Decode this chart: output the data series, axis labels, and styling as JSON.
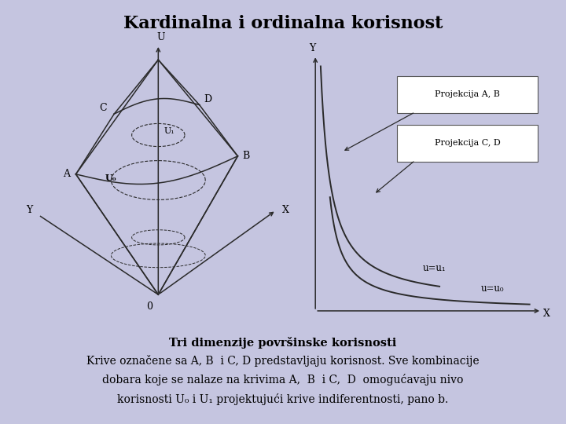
{
  "title": "Kardinalna i ordinalna korisnost",
  "bg_color": "#c5c5e0",
  "panel_bg": "#ffffff",
  "text_color": "#000000",
  "caption_bold": "Tri dimenzije površinske korisnosti",
  "caption_line2": "Krive označene sa A, B  i C, D predstavljaju korisnost. Sve kombinacije",
  "caption_line3": "dobara koje se nalaze na krivima A,  B  i C,  D  omogućavaju nivo",
  "caption_line4": "korisnosti U₀ i U₁ projektujući krive indiferentnosti, pano b.",
  "right_panel": {
    "xlabel": "X",
    "ylabel": "Y",
    "label_u1": "u=u₁",
    "label_u0": "u=u₀",
    "box1": "Projekcija A, B",
    "box2": "Projekcija C, D"
  }
}
